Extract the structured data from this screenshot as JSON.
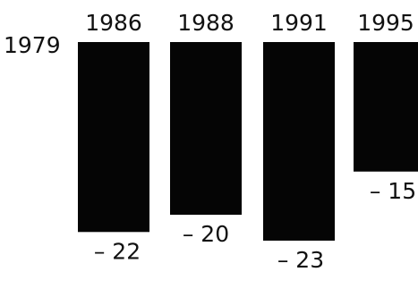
{
  "chart_data": {
    "type": "bar",
    "baseline_label": "1979",
    "categories": [
      "1986",
      "1988",
      "1991",
      "1995"
    ],
    "values": [
      -22,
      -20,
      -23,
      -15
    ],
    "value_labels": [
      "– 22",
      "– 20",
      "– 23",
      "– 15"
    ],
    "title": "",
    "xlabel": "",
    "ylabel": "",
    "ylim": [
      -25,
      0
    ],
    "grid": false,
    "legend": "none",
    "colors": {
      "bar": "#050505",
      "text": "#111111",
      "background": "#ffffff"
    }
  }
}
